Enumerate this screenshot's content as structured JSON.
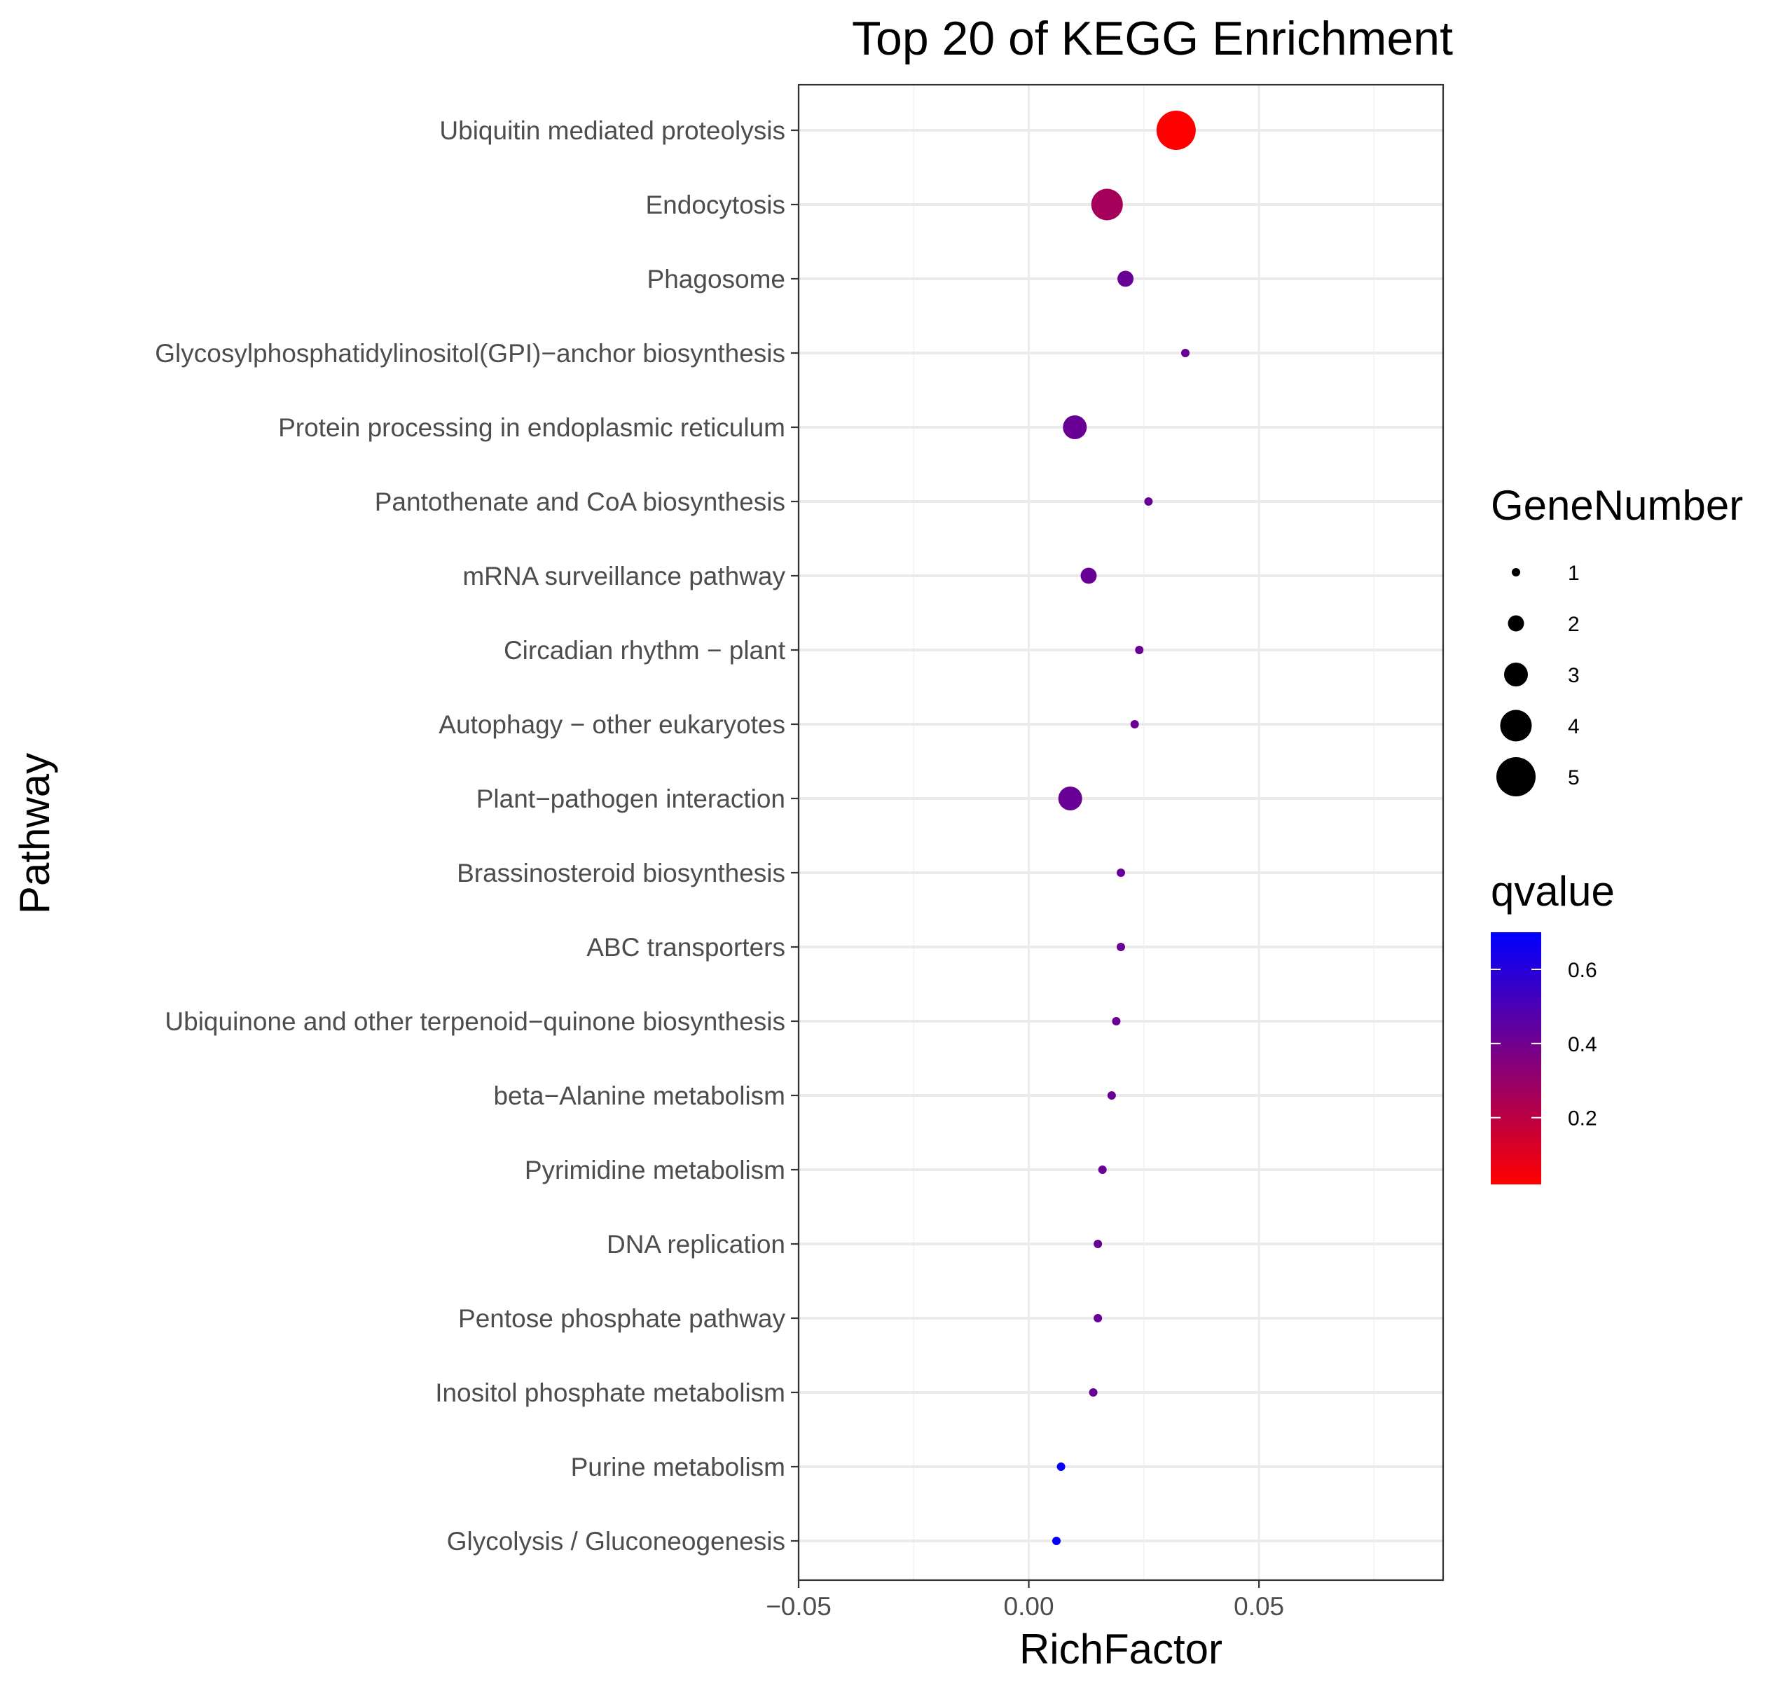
{
  "chart_data": {
    "type": "scatter",
    "title": "Top 20 of KEGG Enrichment",
    "xlabel": "RichFactor",
    "ylabel": "Pathway",
    "xlim": [
      -0.05,
      0.09
    ],
    "x_ticks": [
      "−0.05",
      "0.00",
      "0.05"
    ],
    "x_tick_values": [
      -0.05,
      0.0,
      0.05
    ],
    "grid": true,
    "legend_position": "right",
    "size_legend": {
      "title": "GeneNumber",
      "values": [
        1,
        2,
        3,
        4,
        5
      ],
      "labels": [
        "1",
        "2",
        "3",
        "4",
        "5"
      ]
    },
    "color_legend": {
      "title": "qvalue",
      "low_color": "#FF0000",
      "high_color": "#0000FF",
      "range": [
        0.02,
        0.7
      ],
      "tick_values": [
        0.2,
        0.4,
        0.6
      ],
      "tick_labels": [
        "0.2",
        "0.4",
        "0.6"
      ]
    },
    "points": [
      {
        "pathway": "Ubiquitin mediated proteolysis",
        "rich_factor": 0.032,
        "gene_number": 5,
        "qvalue": 0.02
      },
      {
        "pathway": "Endocytosis",
        "rich_factor": 0.017,
        "gene_number": 4,
        "qvalue": 0.26
      },
      {
        "pathway": "Phagosome",
        "rich_factor": 0.021,
        "gene_number": 2,
        "qvalue": 0.42
      },
      {
        "pathway": "Glycosylphosphatidylinositol(GPI)−anchor biosynthesis",
        "rich_factor": 0.034,
        "gene_number": 1,
        "qvalue": 0.42
      },
      {
        "pathway": "Protein processing in endoplasmic reticulum",
        "rich_factor": 0.01,
        "gene_number": 3,
        "qvalue": 0.42
      },
      {
        "pathway": "Pantothenate and CoA biosynthesis",
        "rich_factor": 0.026,
        "gene_number": 1,
        "qvalue": 0.42
      },
      {
        "pathway": "mRNA surveillance pathway",
        "rich_factor": 0.013,
        "gene_number": 2,
        "qvalue": 0.42
      },
      {
        "pathway": "Circadian rhythm − plant",
        "rich_factor": 0.024,
        "gene_number": 1,
        "qvalue": 0.42
      },
      {
        "pathway": "Autophagy − other eukaryotes",
        "rich_factor": 0.023,
        "gene_number": 1,
        "qvalue": 0.42
      },
      {
        "pathway": "Plant−pathogen interaction",
        "rich_factor": 0.009,
        "gene_number": 3,
        "qvalue": 0.42
      },
      {
        "pathway": "Brassinosteroid biosynthesis",
        "rich_factor": 0.02,
        "gene_number": 1,
        "qvalue": 0.42
      },
      {
        "pathway": "ABC transporters",
        "rich_factor": 0.02,
        "gene_number": 1,
        "qvalue": 0.42
      },
      {
        "pathway": "Ubiquinone and other terpenoid−quinone biosynthesis",
        "rich_factor": 0.019,
        "gene_number": 1,
        "qvalue": 0.42
      },
      {
        "pathway": "beta−Alanine metabolism",
        "rich_factor": 0.018,
        "gene_number": 1,
        "qvalue": 0.42
      },
      {
        "pathway": "Pyrimidine metabolism",
        "rich_factor": 0.016,
        "gene_number": 1,
        "qvalue": 0.42
      },
      {
        "pathway": "DNA replication",
        "rich_factor": 0.015,
        "gene_number": 1,
        "qvalue": 0.42
      },
      {
        "pathway": "Pentose phosphate pathway",
        "rich_factor": 0.015,
        "gene_number": 1,
        "qvalue": 0.42
      },
      {
        "pathway": "Inositol phosphate metabolism",
        "rich_factor": 0.014,
        "gene_number": 1,
        "qvalue": 0.42
      },
      {
        "pathway": "Purine metabolism",
        "rich_factor": 0.007,
        "gene_number": 1,
        "qvalue": 0.68
      },
      {
        "pathway": "Glycolysis / Gluconeogenesis",
        "rich_factor": 0.006,
        "gene_number": 1,
        "qvalue": 0.68
      }
    ]
  }
}
